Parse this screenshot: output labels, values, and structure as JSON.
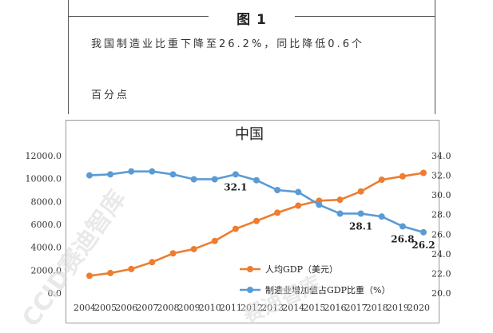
{
  "figure": {
    "heading": "图 1",
    "caption_line1": "我国制造业比重下降至26.2%，同比降低0.6个",
    "caption_line2": "百分点"
  },
  "watermark": {
    "text": "CCID赛迪智库",
    "text2": "赛迪智库"
  },
  "chart_data": {
    "type": "line",
    "title": "中国",
    "x": [
      "2004",
      "2005",
      "2006",
      "2007",
      "2008",
      "2009",
      "2010",
      "2011",
      "2012",
      "2013",
      "2014",
      "2015",
      "2016",
      "2017",
      "2018",
      "2019",
      "2020"
    ],
    "left_axis": {
      "ticks": [
        "0.0",
        "2000.0",
        "4000.0",
        "6000.0",
        "8000.0",
        "10000.0",
        "12000.0"
      ],
      "ylim": [
        0,
        12000
      ]
    },
    "right_axis": {
      "ticks": [
        "20.0",
        "22.0",
        "24.0",
        "26.0",
        "28.0",
        "30.0",
        "32.0",
        "34.0"
      ],
      "ylim": [
        20,
        34
      ]
    },
    "series": [
      {
        "name": "人均GDP（美元）",
        "axis": "left",
        "color": "#ED7D31",
        "values": [
          1510,
          1750,
          2100,
          2700,
          3470,
          3840,
          4550,
          5610,
          6300,
          7020,
          7640,
          8070,
          8150,
          8880,
          9900,
          10200,
          10500
        ]
      },
      {
        "name": "制造业增加值占GDP比重（%）",
        "axis": "right",
        "color": "#5B9BD5",
        "values": [
          32.0,
          32.1,
          32.4,
          32.4,
          32.1,
          31.6,
          31.6,
          32.1,
          31.5,
          30.5,
          30.3,
          29.0,
          28.1,
          28.1,
          27.8,
          26.8,
          26.2
        ]
      }
    ],
    "data_labels": [
      {
        "series": 1,
        "index": 7,
        "text": "32.1"
      },
      {
        "series": 1,
        "index": 13,
        "text": "28.1"
      },
      {
        "series": 1,
        "index": 15,
        "text": "26.8"
      },
      {
        "series": 1,
        "index": 16,
        "text": "26.2"
      }
    ],
    "legend_placement": "bottom-center",
    "grid": false
  }
}
